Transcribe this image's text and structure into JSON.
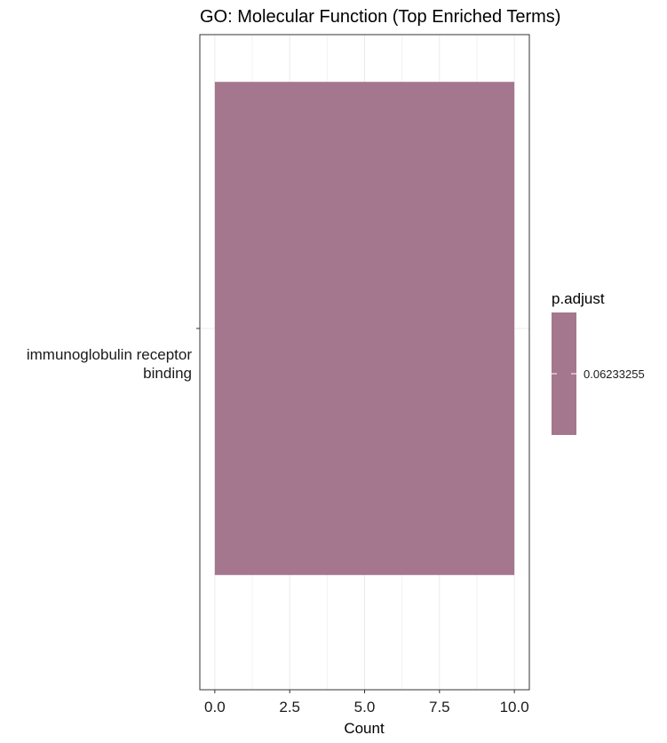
{
  "chart_data": {
    "type": "bar",
    "orientation": "horizontal",
    "title": "GO: Molecular Function (Top Enriched Terms)",
    "xlabel": "Count",
    "ylabel": "",
    "categories": [
      "immunoglobulin receptor binding"
    ],
    "category_label_lines": [
      [
        "immunoglobulin receptor",
        "binding"
      ]
    ],
    "values": [
      10
    ],
    "xlim": [
      -0.5,
      10.5
    ],
    "xticks": [
      0,
      2.5,
      5,
      7.5,
      10
    ],
    "xtick_labels": [
      "0.0",
      "2.5",
      "5.0",
      "7.5",
      "10.0"
    ],
    "grid": true,
    "bar_color": "#a4778e",
    "legend": {
      "title": "p.adjust",
      "placement": "right",
      "tick_label": "0.06233255",
      "color": "#a4778e"
    }
  }
}
